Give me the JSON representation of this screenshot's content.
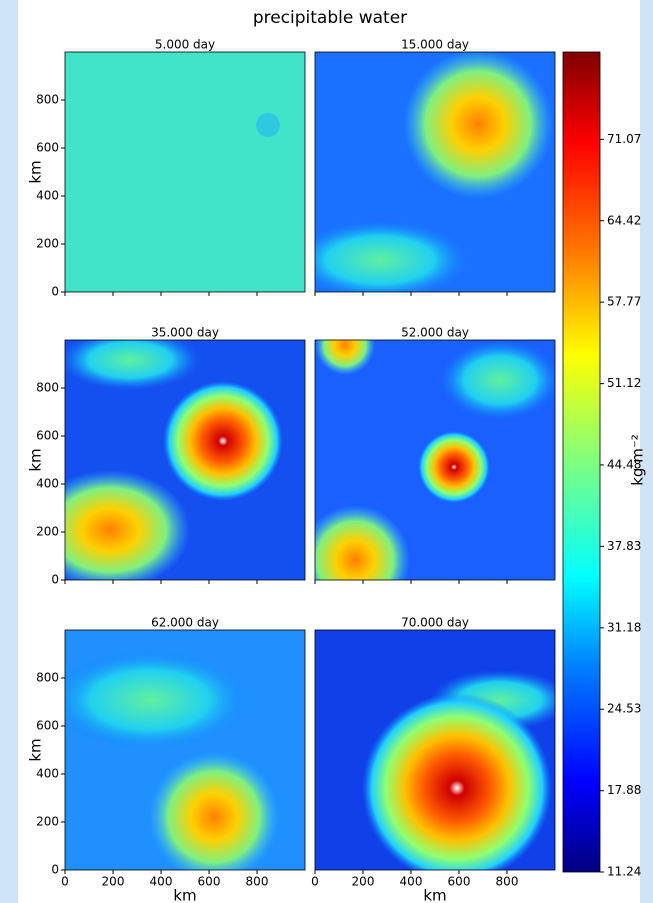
{
  "chart_data": {
    "type": "heatmap",
    "title": "precipitable water",
    "panels": [
      {
        "title": "5.000 day"
      },
      {
        "title": "15.000 day"
      },
      {
        "title": "35.000 day"
      },
      {
        "title": "52.000 day"
      },
      {
        "title": "62.000 day"
      },
      {
        "title": "70.000 day"
      }
    ],
    "xlabel": "km",
    "ylabel": "km",
    "xlim": [
      0,
      1000
    ],
    "ylim": [
      0,
      1000
    ],
    "xticks": [
      0,
      200,
      400,
      600,
      800
    ],
    "yticks": [
      0,
      200,
      400,
      600,
      800
    ],
    "colorbar": {
      "label": "kg m⁻²",
      "lim": [
        11.24,
        78.2
      ],
      "colormap": "jet",
      "ticks": [
        11.24,
        17.88,
        24.53,
        31.18,
        37.83,
        44.48,
        51.12,
        57.77,
        64.42,
        71.07
      ]
    }
  }
}
